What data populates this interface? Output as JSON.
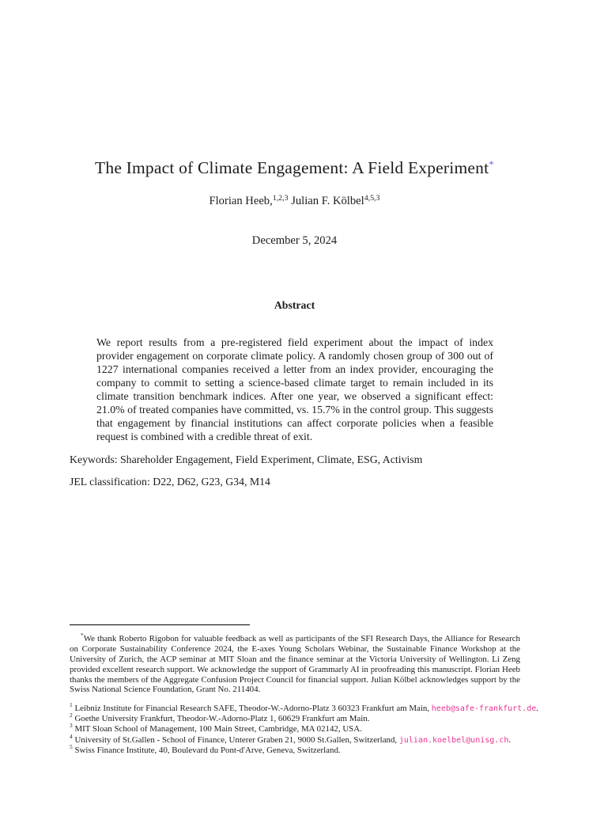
{
  "paper": {
    "title": "The Impact of Climate Engagement: A Field Experiment",
    "title_footnote_marker": "*",
    "authors": {
      "author1_name": "Florian Heeb,",
      "author1_sup": "1,2,3",
      "author2_name": " Julian F. Kölbel",
      "author2_sup": "4,5,3"
    },
    "date": "December 5, 2024"
  },
  "abstract": {
    "heading": "Abstract",
    "body": "We report results from a pre-registered field experiment about the impact of index provider engagement on corporate climate policy. A randomly chosen group of 300 out of 1227 international companies received a letter from an index provider, encouraging the company to commit to setting a science-based climate target to remain included in its climate transition benchmark indices. After one year, we observed a significant effect: 21.0% of treated companies have committed, vs. 15.7% in the control group. This suggests that engagement by financial institutions can affect corporate policies when a feasible request is combined with a credible threat of exit."
  },
  "meta": {
    "keywords": "Keywords: Shareholder Engagement, Field Experiment, Climate, ESG, Activism",
    "jel": "JEL classification: D22, D62, G23, G34, M14"
  },
  "footnotes": {
    "star": {
      "marker": "*",
      "text": "We thank Roberto Rigobon for valuable feedback as well as participants of the SFI Research Days, the Alliance for Research on Corporate Sustainability Conference 2024, the E-axes Young Scholars Webinar, the Sustainable Finance Workshop at the University of Zurich, the ACP seminar at MIT Sloan and the finance seminar at the Victoria University of Wellington. Li Zeng provided excellent research support. We acknowledge the support of Grammarly AI in proofreading this manuscript. Florian Heeb thanks the members of the Aggregate Confusion Project Council for financial support. Julian Kölbel acknowledges support by the Swiss National Science Foundation, Grant No. 211404."
    },
    "items": [
      {
        "num": "1",
        "text": "Leibniz Institute for Financial Research SAFE, Theodor-W.-Adorno-Platz 3 60323 Frankfurt am Main, ",
        "email": "heeb@safe-frankfurt.de",
        "suffix": "."
      },
      {
        "num": "2",
        "text": "Goethe University Frankfurt, Theodor-W.-Adorno-Platz 1, 60629 Frankfurt am Main.",
        "email": "",
        "suffix": ""
      },
      {
        "num": "3",
        "text": "MIT Sloan School of Management, 100 Main Street, Cambridge, MA 02142, USA.",
        "email": "",
        "suffix": ""
      },
      {
        "num": "4",
        "text": "University of St.Gallen - School of Finance, Unterer Graben 21, 9000 St.Gallen, Switzerland, ",
        "email": "julian.koelbel@unisg.ch",
        "suffix": "."
      },
      {
        "num": "5",
        "text": "Swiss Finance Institute, 40, Boulevard du Pont-d'Arve, Geneva, Switzerland.",
        "email": "",
        "suffix": ""
      }
    ]
  },
  "colors": {
    "footnote_link": "#6b6bdc",
    "email_link": "#e8338f",
    "text": "#1c1c1c",
    "background": "#ffffff"
  }
}
